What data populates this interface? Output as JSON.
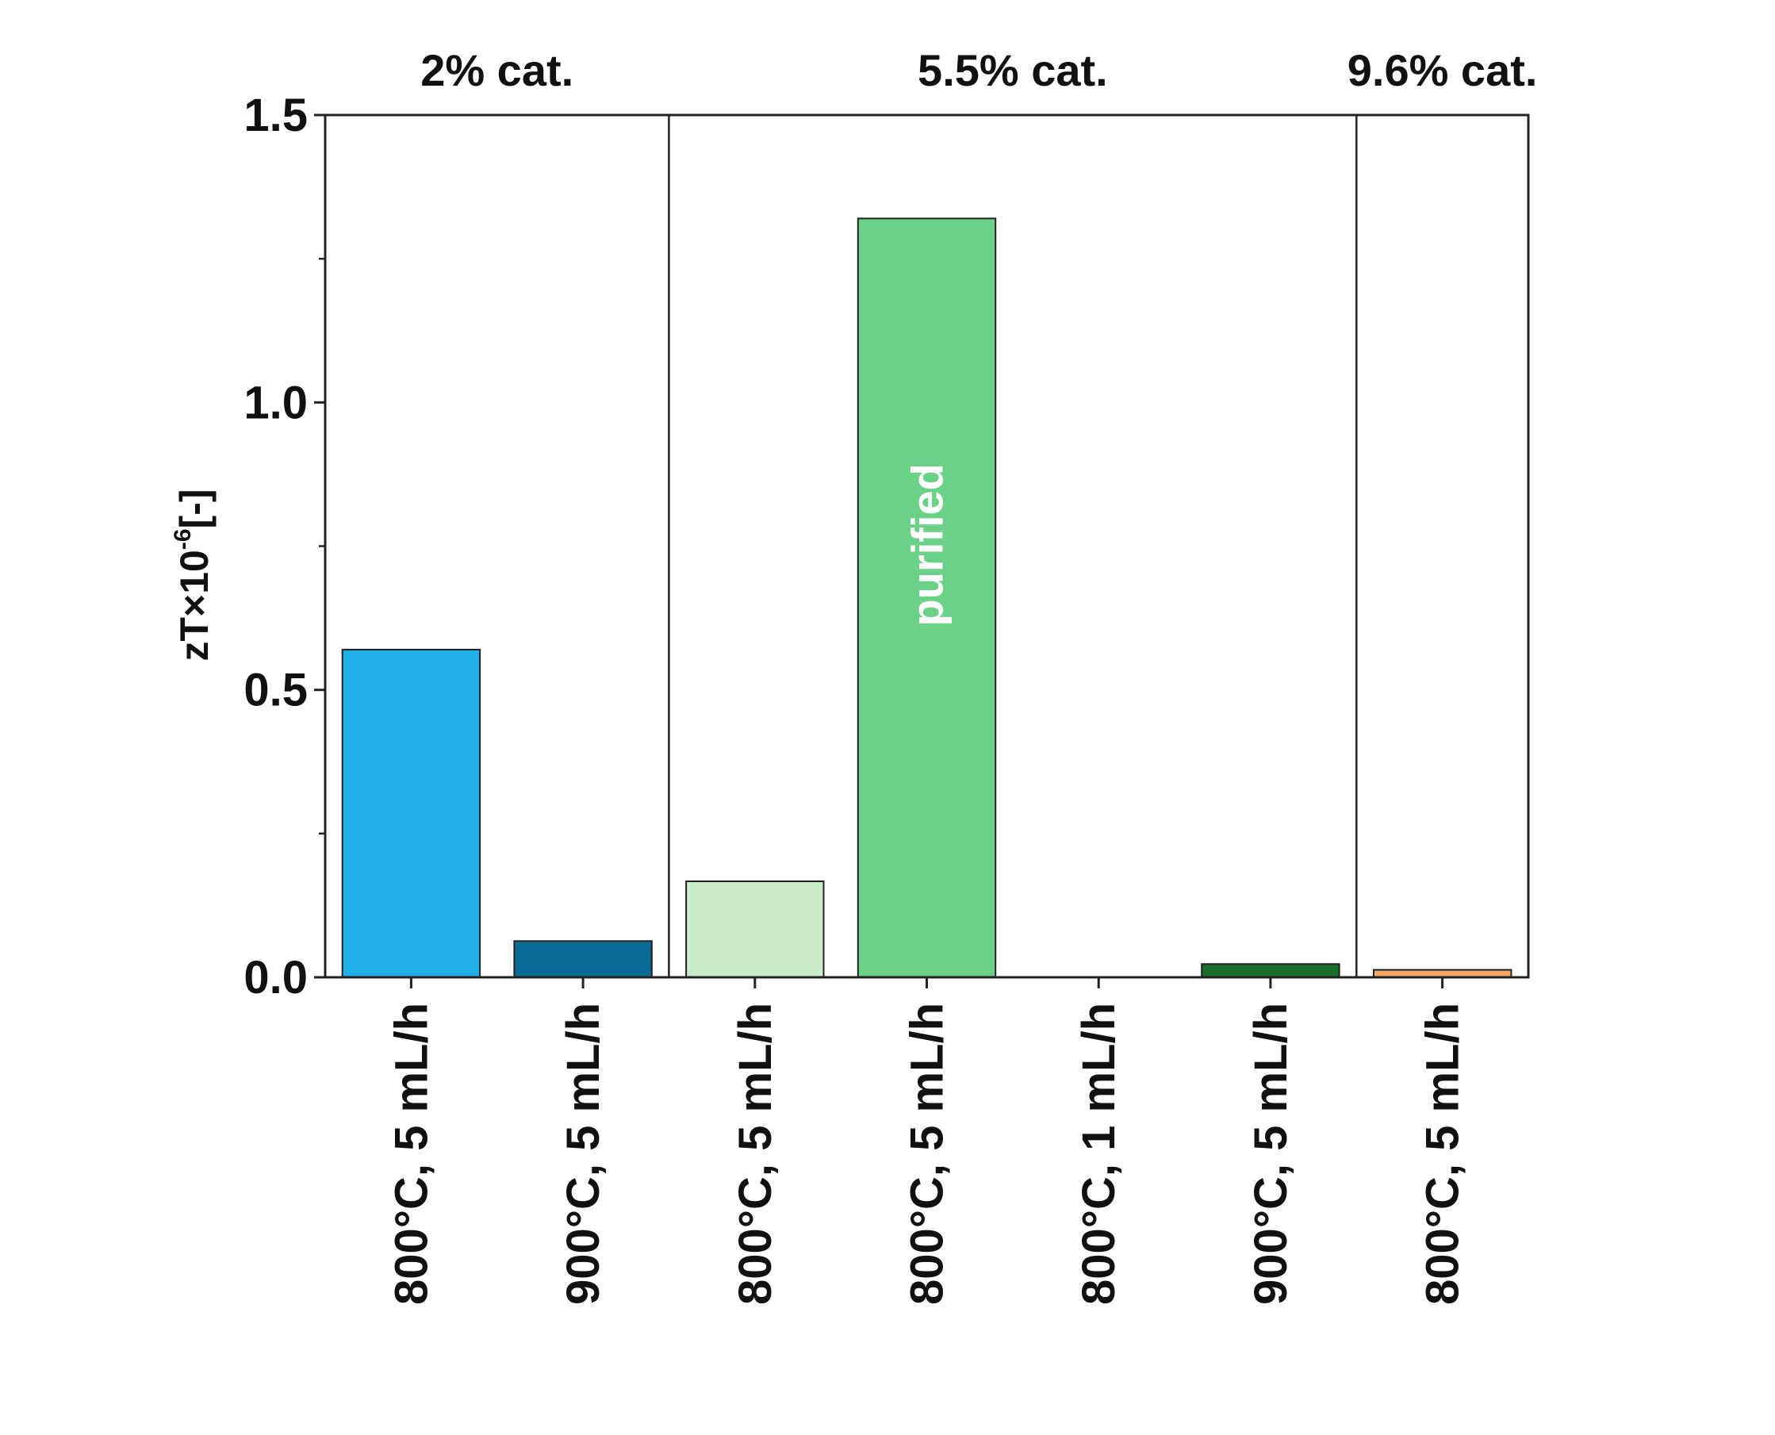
{
  "chart_data": {
    "type": "bar",
    "title": "",
    "xlabel": "",
    "ylabel": {
      "base": "zT×10",
      "exponent": "-6",
      "unit": "[-]"
    },
    "ylim": [
      0,
      1.5
    ],
    "yticks_major": [
      "0.0",
      "0.5",
      "1.0",
      "1.5"
    ],
    "yticks_major_values": [
      0,
      0.5,
      1.0,
      1.5
    ],
    "yticks_minor_values": [
      0.25,
      0.75,
      1.25
    ],
    "categories": [
      "800°C, 5 mL/h",
      "900°C, 5 mL/h",
      "800°C, 5 mL/h",
      "800°C, 5 mL/h",
      "800°C, 1 mL/h",
      "900°C, 5 mL/h",
      "800°C, 5 mL/h"
    ],
    "values": [
      0.57,
      0.063,
      0.167,
      1.32,
      0.0,
      0.023,
      0.013
    ],
    "colors": [
      "#1fb0ea",
      "#0a6c95",
      "#c8ecca",
      "#6bd187",
      "#4a4a4a",
      "#1a6e2a",
      "#f4a968"
    ],
    "bar_annotations": [
      {
        "index": 3,
        "text": "purified",
        "color": "#ffffff"
      }
    ],
    "groups": [
      {
        "label": "2% cat.",
        "start": 0,
        "end": 1
      },
      {
        "label": "5.5% cat.",
        "start": 2,
        "end": 5
      },
      {
        "label": "9.6% cat.",
        "start": 6,
        "end": 6
      }
    ],
    "grid": false,
    "legend": "none"
  }
}
